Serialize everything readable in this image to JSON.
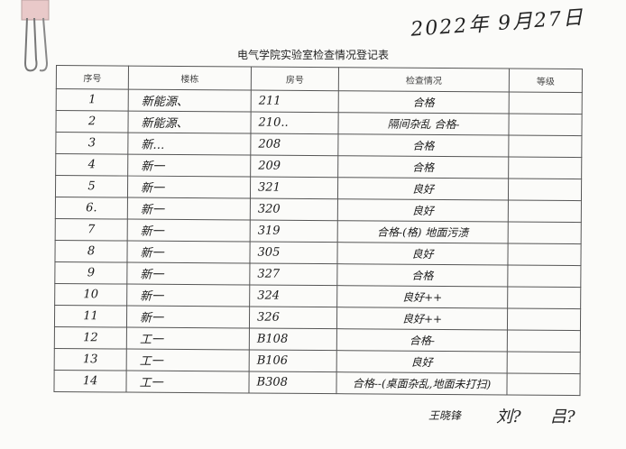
{
  "date": "2022年 9月27日",
  "title": "电气学院实验室检查情况登记表",
  "headers": [
    "序号",
    "楼栋",
    "房号",
    "检查情况",
    "等级"
  ],
  "rows": [
    [
      "1",
      "新能源、",
      "211",
      "合格",
      ""
    ],
    [
      "2",
      "新能源、",
      "210..",
      "隔间杂乱 合格-",
      ""
    ],
    [
      "3",
      "新…",
      "208",
      "合格",
      ""
    ],
    [
      "4",
      "新一",
      "209",
      "合格",
      ""
    ],
    [
      "5",
      "新一",
      "321",
      "良好",
      ""
    ],
    [
      "6.",
      "新一",
      "320",
      "良好",
      ""
    ],
    [
      "7",
      "新一",
      "319",
      "合格-(格) 地面污渍",
      ""
    ],
    [
      "8",
      "新一",
      "305",
      "良好",
      ""
    ],
    [
      "9",
      "新一",
      "327",
      "合格",
      ""
    ],
    [
      "10",
      "新一",
      "324",
      "良好++",
      ""
    ],
    [
      "11",
      "新一",
      "326",
      "良好++",
      ""
    ],
    [
      "12",
      "工一",
      "B108",
      "合格-",
      ""
    ],
    [
      "13",
      "工一",
      "B106",
      "良好",
      ""
    ],
    [
      "14",
      "工一",
      "B308",
      "合格--(桌面杂乱,地面未打扫)",
      ""
    ]
  ],
  "signatures": [
    "王晓锋",
    "刘?",
    "吕?"
  ]
}
